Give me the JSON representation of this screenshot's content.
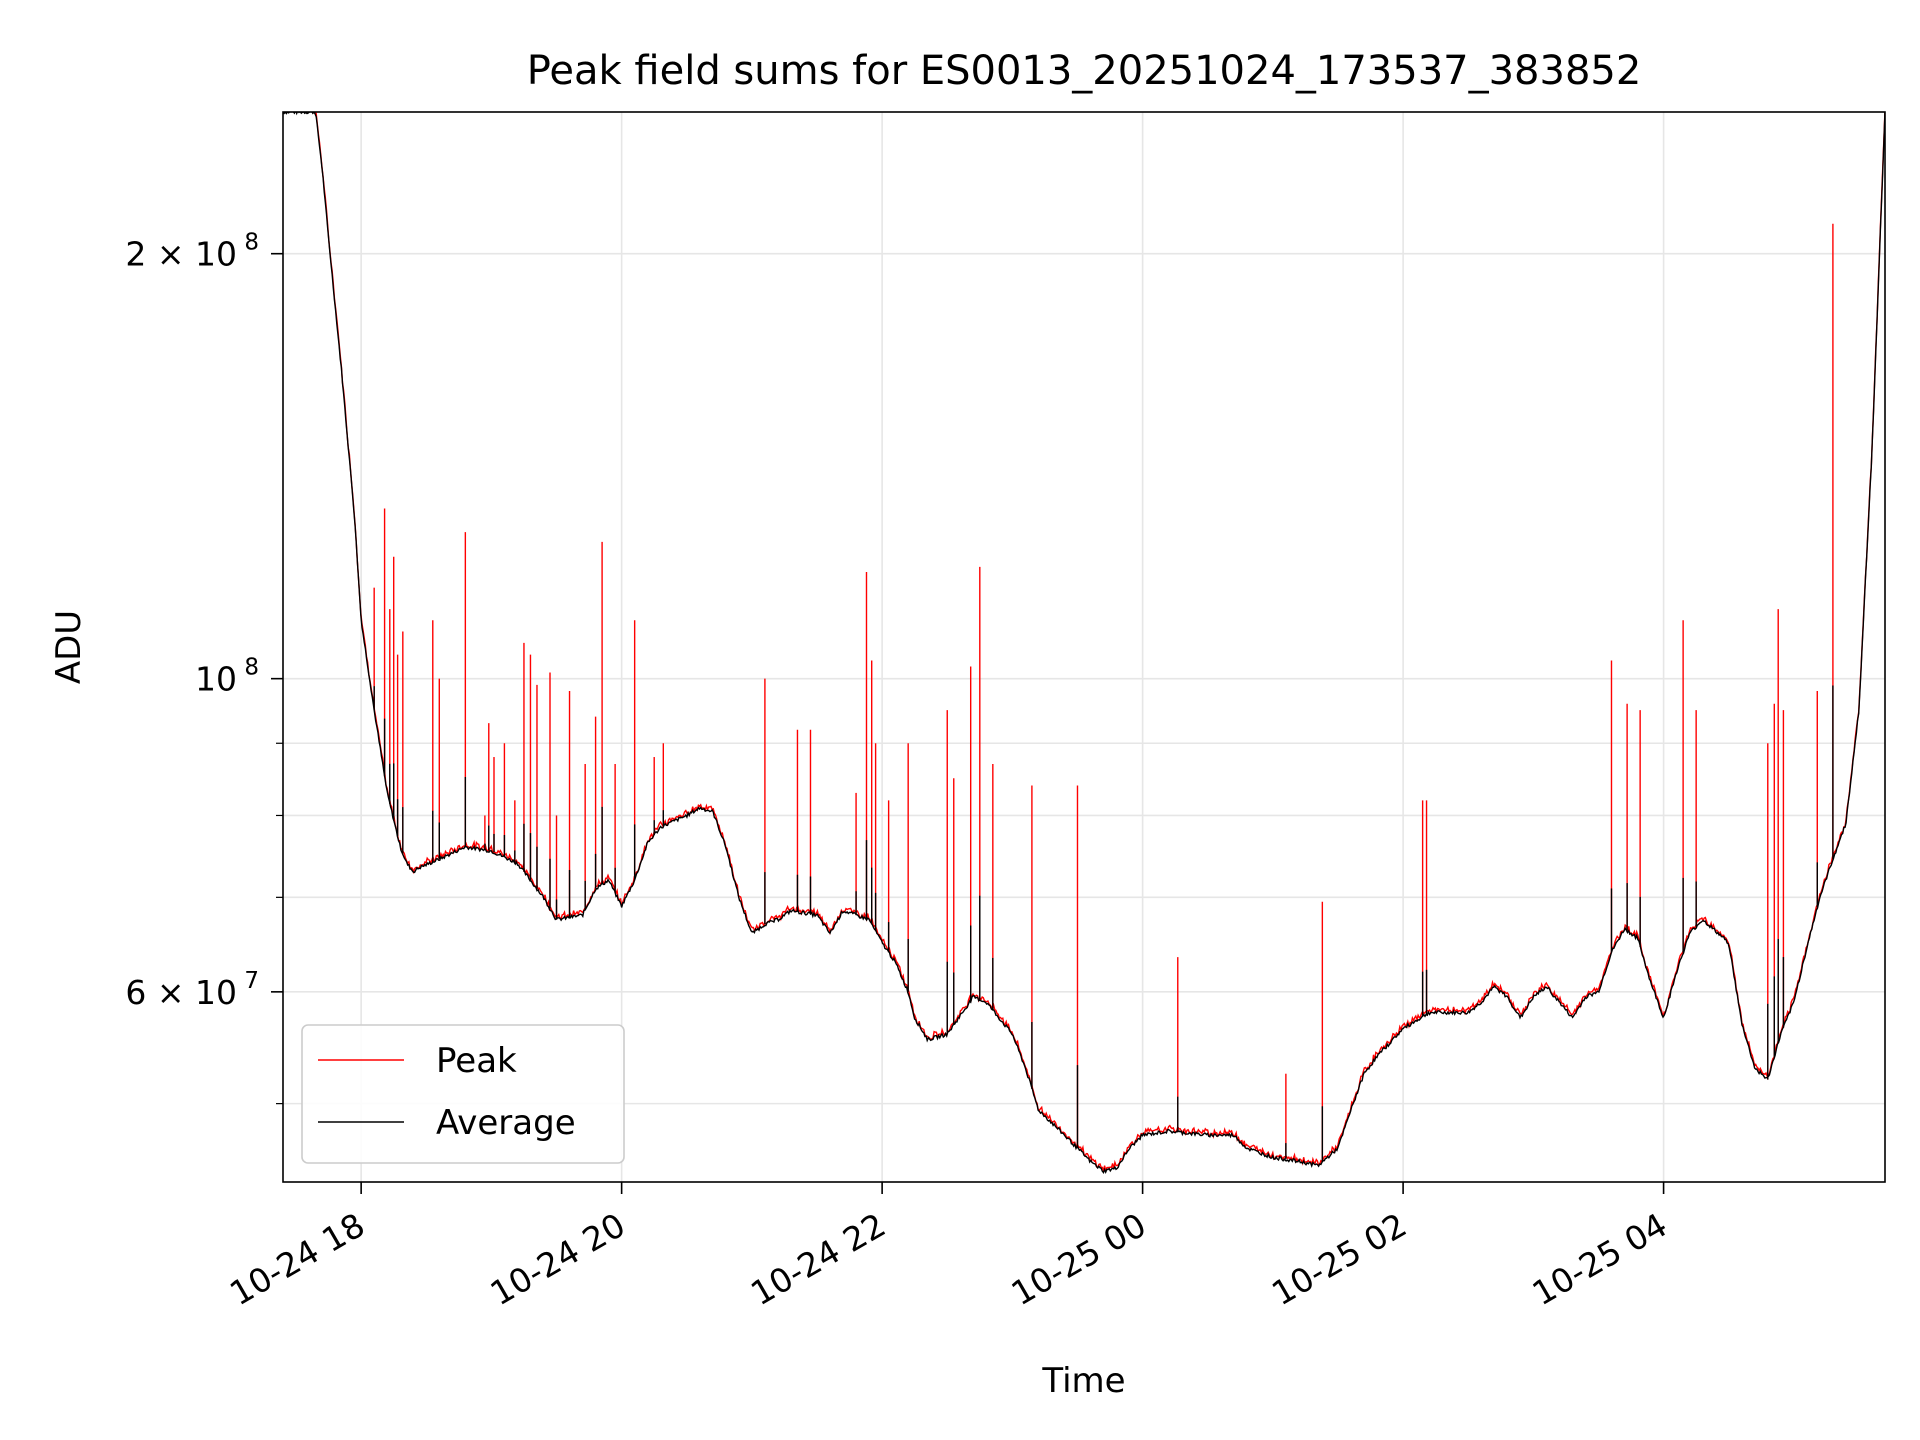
{
  "chart_data": {
    "type": "line",
    "title": "Peak field sums for ES0013_20251024_173537_383852",
    "xlabel": "Time",
    "ylabel": "ADU",
    "y_scale": "log",
    "grid": true,
    "legend_position": "lower-left",
    "xlim_hours": [
      -0.6,
      11.7
    ],
    "ylim": [
      44000000,
      252000000
    ],
    "x_ticks": [
      {
        "hour": 0,
        "label": "10-24 18"
      },
      {
        "hour": 2,
        "label": "10-24 20"
      },
      {
        "hour": 4,
        "label": "10-24 22"
      },
      {
        "hour": 6,
        "label": "10-25 00"
      },
      {
        "hour": 8,
        "label": "10-25 02"
      },
      {
        "hour": 10,
        "label": "10-25 04"
      }
    ],
    "y_ticks_major": [
      {
        "value": 100000000,
        "base": "10",
        "exp": "8",
        "coef": ""
      },
      {
        "value": 200000000,
        "base": "10",
        "exp": "8",
        "coef": "2 × "
      },
      {
        "value": 60000000,
        "base": "10",
        "exp": "7",
        "coef": "6 × "
      }
    ],
    "y_ticks_minor": [
      50000000,
      70000000,
      80000000,
      90000000
    ],
    "series": [
      {
        "name": "Peak",
        "color": "#ff0000",
        "baseline_hours": [
          -0.6,
          -0.35,
          -0.3,
          -0.25,
          -0.15,
          -0.05,
          0.0,
          0.1,
          0.2,
          0.3,
          0.35,
          0.4,
          0.45,
          0.6,
          0.8,
          1.0,
          1.2,
          1.4,
          1.5,
          1.7,
          1.8,
          1.9,
          2.0,
          2.1,
          2.2,
          2.3,
          2.5,
          2.6,
          2.7,
          2.8,
          2.9,
          3.0,
          3.1,
          3.2,
          3.3,
          3.5,
          3.6,
          3.7,
          3.9,
          4.0,
          4.1,
          4.2,
          4.25,
          4.35,
          4.5,
          4.7,
          4.8,
          5.0,
          5.1,
          5.2,
          5.4,
          5.6,
          5.7,
          5.8,
          5.9,
          6.0,
          6.2,
          6.5,
          6.7,
          6.8,
          7.0,
          7.2,
          7.35,
          7.5,
          7.6,
          7.7,
          7.8,
          8.0,
          8.2,
          8.5,
          8.6,
          8.7,
          8.8,
          8.9,
          9.0,
          9.1,
          9.2,
          9.3,
          9.4,
          9.5,
          9.6,
          9.7,
          9.8,
          9.9,
          10.0,
          10.1,
          10.2,
          10.3,
          10.5,
          10.6,
          10.7,
          10.8,
          10.9,
          11.0,
          11.1,
          11.2,
          11.3,
          11.4,
          11.5,
          11.6,
          11.7
        ],
        "baseline_values": [
          252000000,
          252000000,
          230000000,
          205000000,
          165000000,
          130000000,
          110000000,
          95000000,
          83000000,
          76000000,
          74000000,
          73000000,
          73500000,
          74500000,
          76000000,
          75500000,
          74000000,
          70000000,
          67500000,
          68000000,
          71000000,
          72000000,
          69000000,
          72000000,
          76500000,
          78500000,
          80000000,
          81000000,
          80500000,
          76000000,
          70000000,
          66000000,
          67000000,
          67500000,
          68500000,
          68000000,
          66000000,
          68500000,
          67500000,
          65000000,
          63000000,
          60000000,
          57500000,
          55500000,
          56000000,
          59500000,
          59000000,
          56000000,
          53000000,
          49500000,
          47500000,
          45500000,
          44800000,
          45000000,
          46500000,
          47500000,
          47800000,
          47500000,
          47500000,
          46500000,
          45800000,
          45500000,
          45200000,
          46500000,
          49500000,
          52500000,
          54000000,
          56500000,
          58000000,
          58000000,
          59000000,
          60500000,
          59500000,
          57500000,
          59500000,
          60500000,
          59000000,
          57500000,
          59500000,
          60000000,
          64000000,
          66500000,
          65500000,
          61000000,
          57500000,
          62000000,
          66000000,
          67500000,
          65000000,
          57000000,
          53000000,
          52000000,
          56000000,
          59000000,
          64500000,
          70000000,
          74500000,
          79000000,
          95000000,
          145000000,
          252000000
        ],
        "spike_hours": [
          0.1,
          0.18,
          0.22,
          0.25,
          0.28,
          0.32,
          0.55,
          0.6,
          0.8,
          0.95,
          0.98,
          1.02,
          1.1,
          1.18,
          1.25,
          1.3,
          1.35,
          1.45,
          1.5,
          1.6,
          1.72,
          1.8,
          1.85,
          1.95,
          2.1,
          2.25,
          2.32,
          2.45,
          2.52,
          3.1,
          3.35,
          3.45,
          3.8,
          3.88,
          3.92,
          3.95,
          4.05,
          4.2,
          4.5,
          4.55,
          4.68,
          4.75,
          4.85,
          5.15,
          5.5,
          6.27,
          7.1,
          7.38,
          8.15,
          8.18,
          9.6,
          9.72,
          9.82,
          10.15,
          10.25,
          10.8,
          10.85,
          10.88,
          10.92,
          11.18,
          11.3
        ],
        "spike_values": [
          116000000,
          132000000,
          112000000,
          122000000,
          104000000,
          108000000,
          110000000,
          100000000,
          127000000,
          80000000,
          93000000,
          88000000,
          90000000,
          82000000,
          106000000,
          104000000,
          99000000,
          101000000,
          80000000,
          98000000,
          87000000,
          94000000,
          125000000,
          87000000,
          110000000,
          88000000,
          90000000,
          80000000,
          80000000,
          100000000,
          92000000,
          92000000,
          83000000,
          119000000,
          103000000,
          90000000,
          82000000,
          90000000,
          95000000,
          85000000,
          102000000,
          120000000,
          87000000,
          84000000,
          84000000,
          63500000,
          52500000,
          69500000,
          82000000,
          82000000,
          103000000,
          96000000,
          95000000,
          110000000,
          95000000,
          90000000,
          96000000,
          112000000,
          95000000,
          98000000,
          210000000
        ]
      },
      {
        "name": "Average",
        "color": "#000000",
        "follows": "Peak baseline"
      }
    ]
  }
}
